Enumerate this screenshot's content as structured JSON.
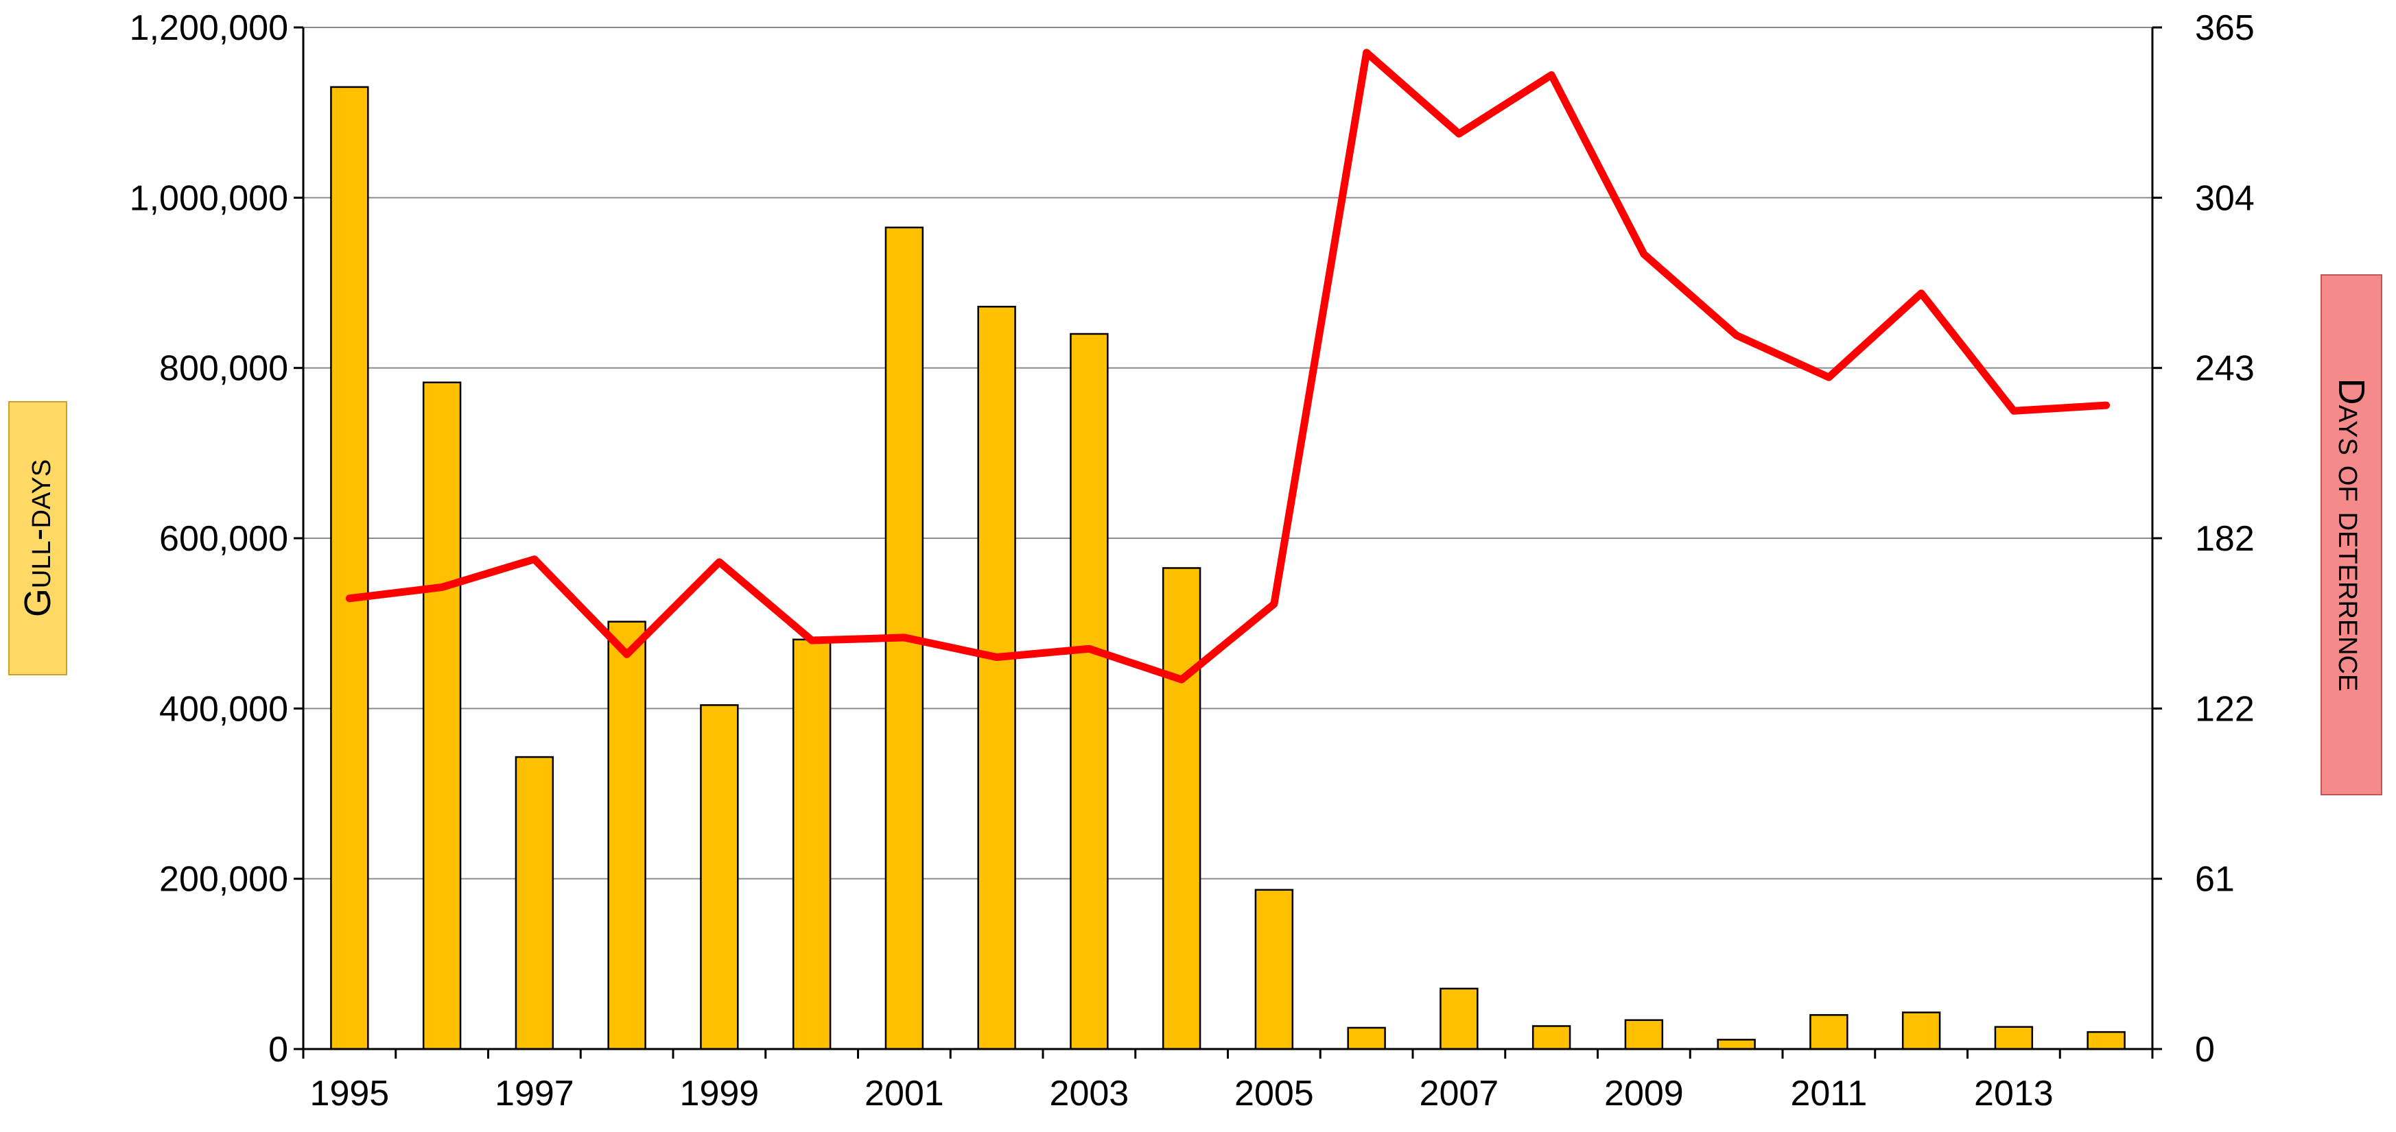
{
  "chart_data": {
    "type": "bar",
    "categories": [
      "1995",
      "1996",
      "1997",
      "1998",
      "1999",
      "2000",
      "2001",
      "2002",
      "2003",
      "2004",
      "2005",
      "2006",
      "2007",
      "2008",
      "2009",
      "2010",
      "2011",
      "2012",
      "2013",
      "2014"
    ],
    "x_tick_labels": [
      "1995",
      "1997",
      "1999",
      "2001",
      "2003",
      "2005",
      "2007",
      "2009",
      "2011",
      "2013"
    ],
    "series": [
      {
        "name": "Gull-days",
        "type": "bar",
        "axis": "left",
        "color": "#ffc000",
        "values": [
          1130000,
          783000,
          343000,
          502000,
          404000,
          481000,
          965000,
          872000,
          840000,
          565000,
          187000,
          25000,
          71000,
          27000,
          34000,
          11000,
          40000,
          43000,
          26000,
          20000
        ]
      },
      {
        "name": "Days of deterrence",
        "type": "line",
        "axis": "right",
        "color": "#ff0000",
        "values": [
          161,
          165,
          175,
          141,
          174,
          146,
          147,
          140,
          143,
          132,
          159,
          356,
          327,
          348,
          284,
          255,
          240,
          270,
          228,
          230
        ]
      }
    ],
    "ylabel": "Gull-days",
    "y2label": "Days of deterrence",
    "ylim": [
      0,
      1200000
    ],
    "y2lim": [
      0,
      365
    ],
    "y_ticks": [
      "0",
      "200,000",
      "400,000",
      "600,000",
      "800,000",
      "1,000,000",
      "1,200,000"
    ],
    "y2_ticks": [
      "0",
      "61",
      "122",
      "182",
      "243",
      "304",
      "365"
    ],
    "grid": true
  },
  "colors": {
    "bar": "#ffc000",
    "line": "#ff0000",
    "left_title_bg": "#ffd966",
    "right_title_bg": "#f58a8a"
  }
}
